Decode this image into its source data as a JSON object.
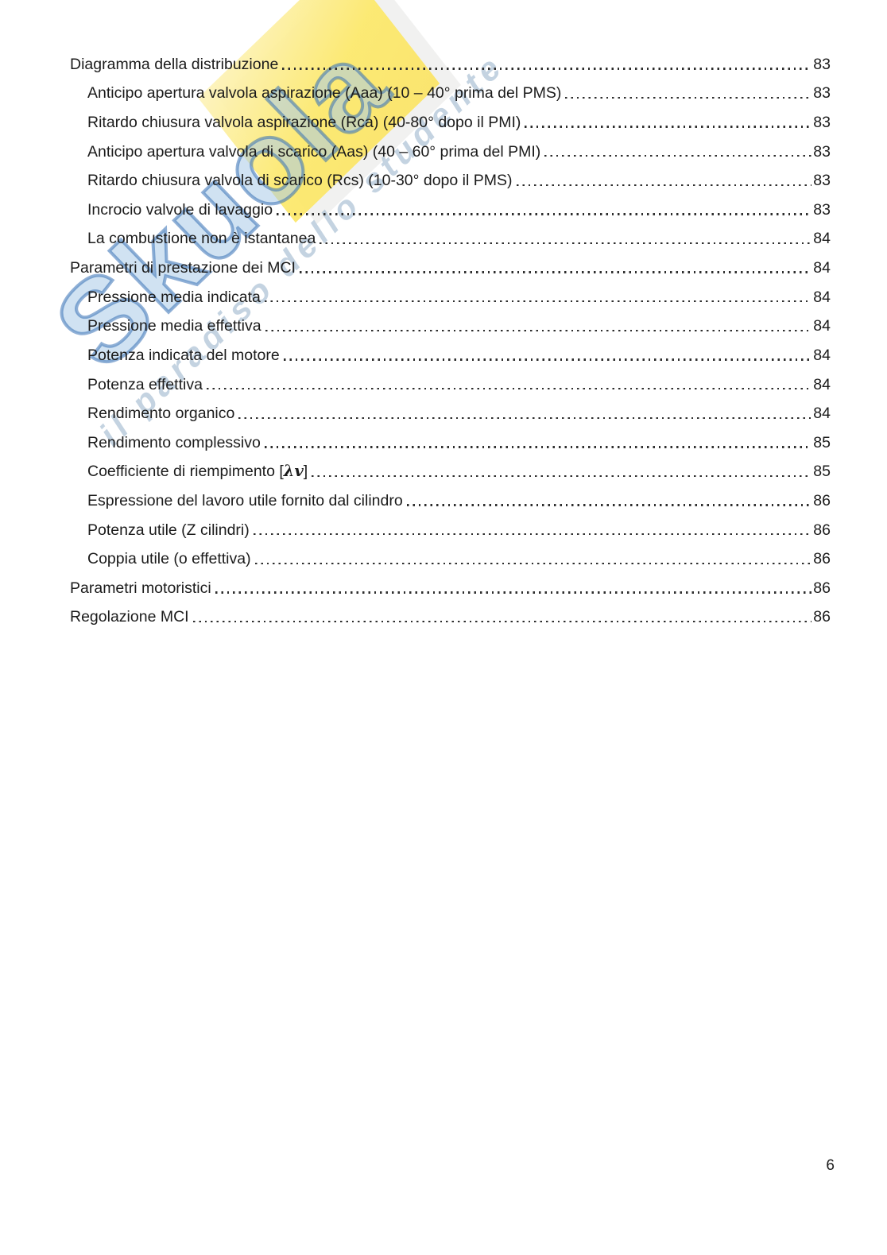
{
  "document": {
    "footer": {
      "page_number": "6"
    }
  },
  "watermark": {
    "brand_text": "Skuola",
    "tagline_text": "il paradiso dello studente",
    "brand_color": "#3a75b8",
    "highlight_color": "#fce96d"
  },
  "toc": {
    "entries": [
      {
        "level": 1,
        "label": "Diagramma della distribuzione",
        "page": "83"
      },
      {
        "level": 2,
        "label": "Anticipo apertura valvola aspirazione (Aaa) (10 – 40° prima del PMS)",
        "page": "83"
      },
      {
        "level": 2,
        "label": "Ritardo chiusura valvola aspirazione (Rca) (40-80° dopo il PMI)",
        "page": "83"
      },
      {
        "level": 2,
        "label": "Anticipo apertura valvola di scarico (Aas) (40 – 60° prima del PMI)",
        "page": "83"
      },
      {
        "level": 2,
        "label": "Ritardo chiusura valvola di scarico (Rcs) (10-30° dopo il PMS)",
        "page": "83"
      },
      {
        "level": 2,
        "label": "Incrocio valvole di lavaggio",
        "page": "83"
      },
      {
        "level": 2,
        "label": "La combustione non è istantanea",
        "page": "84"
      },
      {
        "level": 1,
        "label": "Parametri di prestazione dei MCI",
        "page": "84"
      },
      {
        "level": 2,
        "label": "Pressione media indicata",
        "page": "84"
      },
      {
        "level": 2,
        "label": "Pressione media effettiva",
        "page": "84"
      },
      {
        "level": 2,
        "label": "Potenza indicata del motore",
        "page": "84"
      },
      {
        "level": 2,
        "label": "Potenza effettiva",
        "page": "84"
      },
      {
        "level": 2,
        "label": "Rendimento organico",
        "page": "84"
      },
      {
        "level": 2,
        "label": "Rendimento complessivo",
        "page": "85"
      },
      {
        "level": 2,
        "label": "Coefficiente di riempimento [",
        "math": "λv",
        "suffix": "]",
        "page": "85"
      },
      {
        "level": 2,
        "label": "Espressione del lavoro utile fornito dal cilindro",
        "page": "86"
      },
      {
        "level": 2,
        "label": "Potenza utile (Z cilindri)",
        "page": "86"
      },
      {
        "level": 2,
        "label": "Coppia utile (o effettiva)",
        "page": "86"
      },
      {
        "level": 1,
        "label": "Parametri motoristici",
        "page": "86"
      },
      {
        "level": 1,
        "label": "Regolazione MCI",
        "page": "86"
      }
    ]
  }
}
